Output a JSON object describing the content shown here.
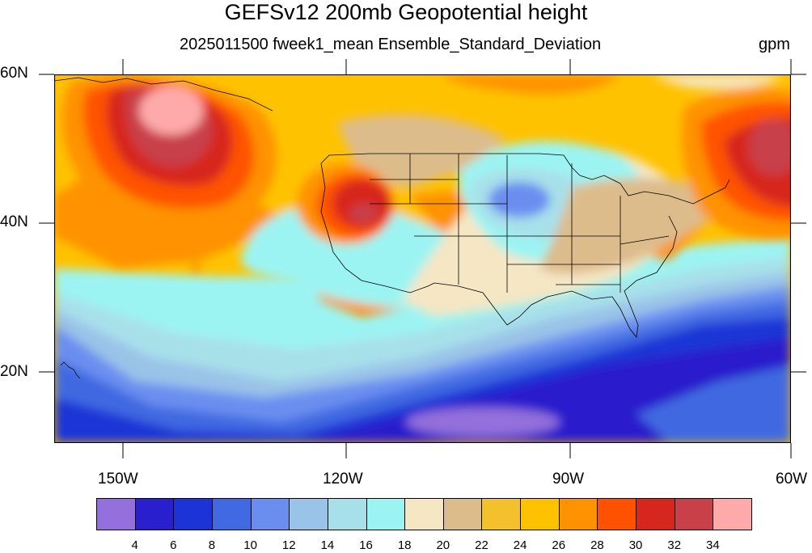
{
  "title": "GEFSv12 200mb Geopotential height",
  "subtitle": "2025011500 fweek1_mean Ensemble_Standard_Deviation",
  "units": "gpm",
  "lat_labels": [
    "60N",
    "40N",
    "20N"
  ],
  "lon_labels": [
    "150W",
    "120W",
    "90W",
    "60W"
  ],
  "colorbar": {
    "colors": [
      "#9370db",
      "#2a1fcc",
      "#1c34d6",
      "#4169e1",
      "#6a8ef0",
      "#9ac3e8",
      "#a8e0ea",
      "#9cf4f2",
      "#f5e6c4",
      "#ddbc8c",
      "#f2c12c",
      "#ffc200",
      "#ff9200",
      "#ff5200",
      "#d7261e",
      "#c84048",
      "#ffaaaa"
    ],
    "labels": [
      "4",
      "6",
      "8",
      "10",
      "12",
      "14",
      "16",
      "18",
      "20",
      "22",
      "24",
      "26",
      "28",
      "30",
      "32",
      "34"
    ]
  },
  "map_data": {
    "projection": "cylindrical equidistant",
    "lon_range": [
      "160W",
      "60W"
    ],
    "lat_range": [
      "10N",
      "60N"
    ],
    "field": "200mb geopotential height ensemble standard deviation",
    "features": [
      {
        "name": "max over Gulf of Alaska",
        "value_range": "34+"
      },
      {
        "name": "max over Great Basin",
        "value_range": "32-34"
      },
      {
        "name": "max over western Atlantic",
        "value_range": "32-34"
      },
      {
        "name": "min over upper Midwest",
        "value_range": "12-14"
      },
      {
        "name": "min south of Mexico",
        "value_range": "<4"
      }
    ]
  }
}
